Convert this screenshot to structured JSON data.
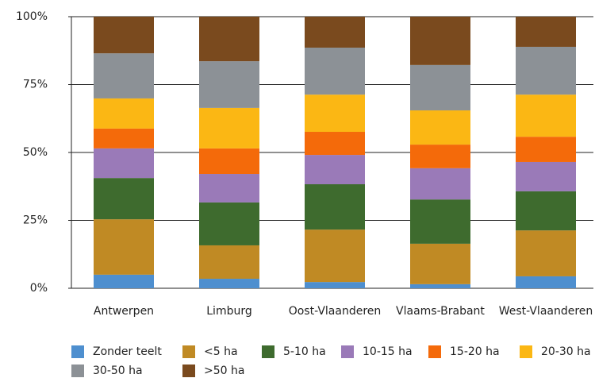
{
  "chart_data": {
    "type": "stacked_bar",
    "categories": [
      "Antwerpen",
      "Limburg",
      "Oost-Vlaanderen",
      "Vlaams-Brabant",
      "West-Vlaanderen"
    ],
    "series": [
      {
        "name": "Zonder teelt",
        "color": "#4e8fcf",
        "values": [
          5.0,
          3.5,
          2.3,
          1.5,
          4.4
        ]
      },
      {
        "name": "<5 ha",
        "color": "#c08a24",
        "values": [
          20.4,
          12.3,
          19.3,
          14.9,
          16.9
        ]
      },
      {
        "name": "5-10 ha",
        "color": "#3e6b2e",
        "values": [
          15.2,
          15.8,
          16.7,
          16.3,
          14.4
        ]
      },
      {
        "name": "10-15 ha",
        "color": "#9a7ab8",
        "values": [
          10.9,
          10.5,
          10.8,
          11.5,
          10.8
        ]
      },
      {
        "name": "15-20 ha",
        "color": "#f46a0a",
        "values": [
          7.3,
          9.4,
          8.5,
          8.7,
          9.3
        ]
      },
      {
        "name": "20-30 ha",
        "color": "#fbb714",
        "values": [
          11.1,
          14.9,
          13.7,
          12.6,
          15.5
        ]
      },
      {
        "name": "30-50 ha",
        "color": "#8c9196",
        "values": [
          16.6,
          17.2,
          17.3,
          16.7,
          17.6
        ]
      },
      {
        "name": ">50 ha",
        "color": "#7a4a1e",
        "values": [
          13.5,
          16.4,
          11.4,
          17.8,
          11.1
        ]
      }
    ],
    "ylim": [
      0,
      100
    ],
    "yticks": [
      {
        "value": 0,
        "label": "0%"
      },
      {
        "value": 25,
        "label": "25%"
      },
      {
        "value": 50,
        "label": "50%"
      },
      {
        "value": 75,
        "label": "75%"
      },
      {
        "value": 100,
        "label": "100%"
      }
    ],
    "grid": true
  }
}
